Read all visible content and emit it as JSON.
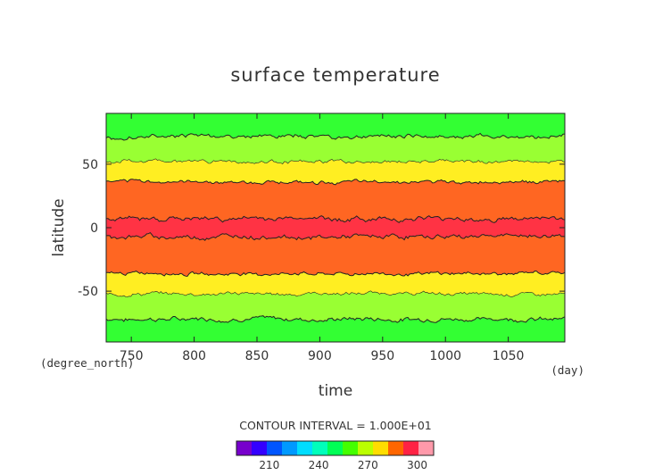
{
  "chart_data": {
    "type": "heatmap",
    "title": "surface temperature",
    "xlabel": "time",
    "ylabel": "latitude",
    "x_unit": "(day)",
    "y_unit": "(degree_north)",
    "xlim": [
      730,
      1095
    ],
    "ylim": [
      -90,
      90
    ],
    "xticks": [
      750,
      800,
      850,
      900,
      950,
      1000,
      1050
    ],
    "yticks": [
      50,
      0,
      -50
    ],
    "contour_interval_text": "CONTOUR INTERVAL = 1.000E+01",
    "contour_interval": 10,
    "bands": [
      {
        "lat_range": [
          -90,
          -72
        ],
        "value_range": [
          250,
          260
        ],
        "color": "#33ff33"
      },
      {
        "lat_range": [
          -72,
          -52
        ],
        "value_range": [
          260,
          270
        ],
        "color": "#99ff33"
      },
      {
        "lat_range": [
          -52,
          -36
        ],
        "value_range": [
          270,
          280
        ],
        "color": "#ffee22"
      },
      {
        "lat_range": [
          -36,
          -7
        ],
        "value_range": [
          280,
          290
        ],
        "color": "#ff6622"
      },
      {
        "lat_range": [
          -7,
          7
        ],
        "value_range": [
          290,
          300
        ],
        "color": "#ff3344"
      },
      {
        "lat_range": [
          7,
          36
        ],
        "value_range": [
          280,
          290
        ],
        "color": "#ff6622"
      },
      {
        "lat_range": [
          36,
          52
        ],
        "value_range": [
          270,
          280
        ],
        "color": "#ffee22"
      },
      {
        "lat_range": [
          52,
          72
        ],
        "value_range": [
          260,
          270
        ],
        "color": "#99ff33"
      },
      {
        "lat_range": [
          72,
          90
        ],
        "value_range": [
          250,
          260
        ],
        "color": "#33ff33"
      }
    ],
    "colorbar": {
      "levels": [
        190,
        200,
        210,
        220,
        230,
        240,
        250,
        260,
        270,
        280,
        290,
        300,
        310
      ],
      "colors": [
        "#7700cc",
        "#3300ff",
        "#0055ff",
        "#0099ff",
        "#00ddff",
        "#00ffbb",
        "#00ff55",
        "#44ff00",
        "#bbff00",
        "#ffdd00",
        "#ff6600",
        "#ff2244",
        "#ff99aa"
      ],
      "tick_labels": [
        "210",
        "240",
        "270",
        "300"
      ]
    }
  }
}
